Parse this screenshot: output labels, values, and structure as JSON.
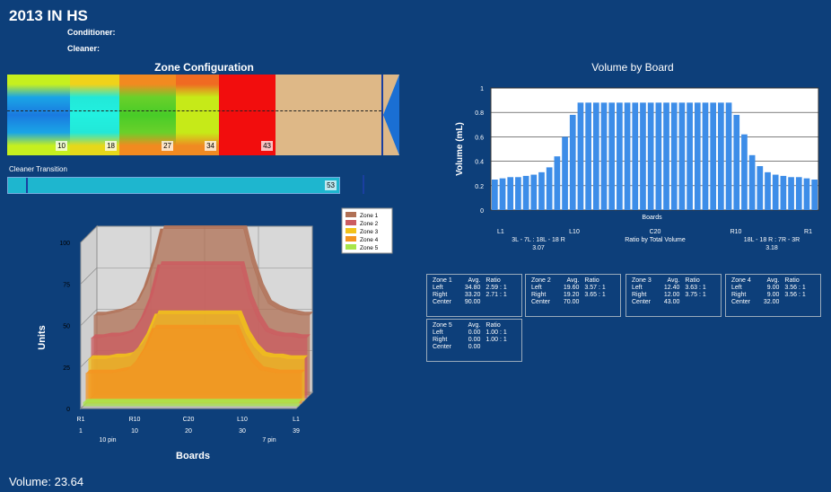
{
  "header": {
    "title": "2013 IN HS",
    "conditioner_label": "Conditioner:",
    "cleaner_label": "Cleaner:"
  },
  "zone_config": {
    "title": "Zone Configuration",
    "markers": [
      "10",
      "18",
      "27",
      "34",
      "43"
    ]
  },
  "cleaner_transition": {
    "label": "Cleaner Transition",
    "value": "53"
  },
  "volume_chart": {
    "title": "Volume by Board",
    "ylabel": "Volume (mL)",
    "xlabel": "Boards",
    "yticks": [
      "0",
      "0.2",
      "0.4",
      "0.6",
      "0.8",
      "1"
    ],
    "board_labels": [
      "L1",
      "L10",
      "C20",
      "R10",
      "R1"
    ],
    "left_ratio_line1": "3L - 7L : 18L - 18 R",
    "left_ratio_line2": "3.07",
    "center_caption": "Ratio by Total Volume",
    "right_ratio_line1": "18L - 18 R : 7R - 3R",
    "right_ratio_line2": "3.18"
  },
  "chart_data": [
    {
      "type": "bar",
      "title": "Volume by Board",
      "xlabel": "Boards",
      "ylabel": "Volume (mL)",
      "ylim": [
        0,
        1
      ],
      "grid": true,
      "values": [
        0.25,
        0.26,
        0.27,
        0.27,
        0.28,
        0.29,
        0.31,
        0.35,
        0.44,
        0.6,
        0.78,
        0.88,
        0.88,
        0.88,
        0.88,
        0.88,
        0.88,
        0.88,
        0.88,
        0.88,
        0.88,
        0.88,
        0.88,
        0.88,
        0.88,
        0.88,
        0.88,
        0.88,
        0.88,
        0.88,
        0.88,
        0.78,
        0.62,
        0.45,
        0.36,
        0.31,
        0.29,
        0.28,
        0.27,
        0.27,
        0.26,
        0.25
      ]
    },
    {
      "type": "area",
      "ylabel": "Units",
      "xlabel": "Boards",
      "ylim": [
        0,
        100
      ],
      "yticks": [
        "0",
        "25",
        "50",
        "75",
        "100"
      ],
      "xticks": [
        "R1",
        "R10",
        "C20",
        "L10",
        "L1"
      ],
      "xnums": [
        "1",
        "10",
        "20",
        "30",
        "39"
      ],
      "pin_labels": [
        "10 pin",
        "7 pin"
      ],
      "legend": [
        "Zone 1",
        "Zone 2",
        "Zone 3",
        "Zone 4",
        "Zone 5"
      ],
      "colors": [
        "#b07055",
        "#cc5c60",
        "#f2c21a",
        "#f49420",
        "#a8e64a"
      ],
      "series": [
        {
          "name": "Zone 1",
          "values": [
            48,
            48,
            49,
            50,
            52,
            55,
            65,
            80,
            100,
            100,
            100,
            100,
            100,
            100,
            100,
            100,
            100,
            100,
            100,
            80,
            65,
            55,
            52,
            50,
            49,
            48,
            48
          ]
        },
        {
          "name": "Zone 2",
          "values": [
            36,
            36,
            37,
            37,
            38,
            40,
            48,
            60,
            80,
            80,
            80,
            80,
            80,
            80,
            80,
            80,
            80,
            80,
            80,
            60,
            48,
            40,
            38,
            37,
            37,
            36,
            36
          ]
        },
        {
          "name": "Zone 3",
          "values": [
            25,
            25,
            25,
            26,
            26,
            27,
            32,
            40,
            52,
            52,
            52,
            52,
            52,
            52,
            52,
            52,
            52,
            52,
            52,
            40,
            32,
            27,
            26,
            26,
            25,
            25,
            25
          ]
        },
        {
          "name": "Zone 4",
          "values": [
            18,
            18,
            18,
            18,
            19,
            20,
            25,
            33,
            45,
            45,
            45,
            45,
            45,
            45,
            45,
            45,
            45,
            45,
            45,
            33,
            25,
            20,
            19,
            18,
            18,
            18,
            18
          ]
        },
        {
          "name": "Zone 5",
          "values": [
            2,
            2,
            2,
            2,
            2,
            2,
            2,
            2,
            2,
            2,
            2,
            2,
            2,
            2,
            2,
            2,
            2,
            2,
            2,
            2,
            2,
            2,
            2,
            2,
            2,
            2,
            2
          ]
        }
      ]
    }
  ],
  "zone_boxes": [
    {
      "title": "Zone 1",
      "h_avg": "Avg.",
      "h_ratio": "Ratio",
      "left_avg": "34.80",
      "left_ratio": "2.59 : 1",
      "right_avg": "33.20",
      "right_ratio": "2.71 : 1",
      "center": "90.00"
    },
    {
      "title": "Zone 2",
      "h_avg": "Avg.",
      "h_ratio": "Ratio",
      "left_avg": "19.60",
      "left_ratio": "3.57 : 1",
      "right_avg": "19.20",
      "right_ratio": "3.65 : 1",
      "center": "70.00"
    },
    {
      "title": "Zone 3",
      "h_avg": "Avg.",
      "h_ratio": "Ratio",
      "left_avg": "12.40",
      "left_ratio": "3.63 : 1",
      "right_avg": "12.00",
      "right_ratio": "3.75 : 1",
      "center": "43.00"
    },
    {
      "title": "Zone 4",
      "h_avg": "Avg.",
      "h_ratio": "Ratio",
      "left_avg": "9.00",
      "left_ratio": "3.56 : 1",
      "right_avg": "9.00",
      "right_ratio": "3.56 : 1",
      "center": "32.00"
    },
    {
      "title": "Zone 5",
      "h_avg": "Avg.",
      "h_ratio": "Ratio",
      "left_avg": "0.00",
      "left_ratio": "1.00 : 1",
      "right_avg": "0.00",
      "right_ratio": "1.00 : 1",
      "center": "0.00"
    }
  ],
  "row_labels": {
    "left": "Left",
    "right": "Right",
    "center": "Center"
  },
  "footer": {
    "volume": "Volume: 23.64"
  }
}
